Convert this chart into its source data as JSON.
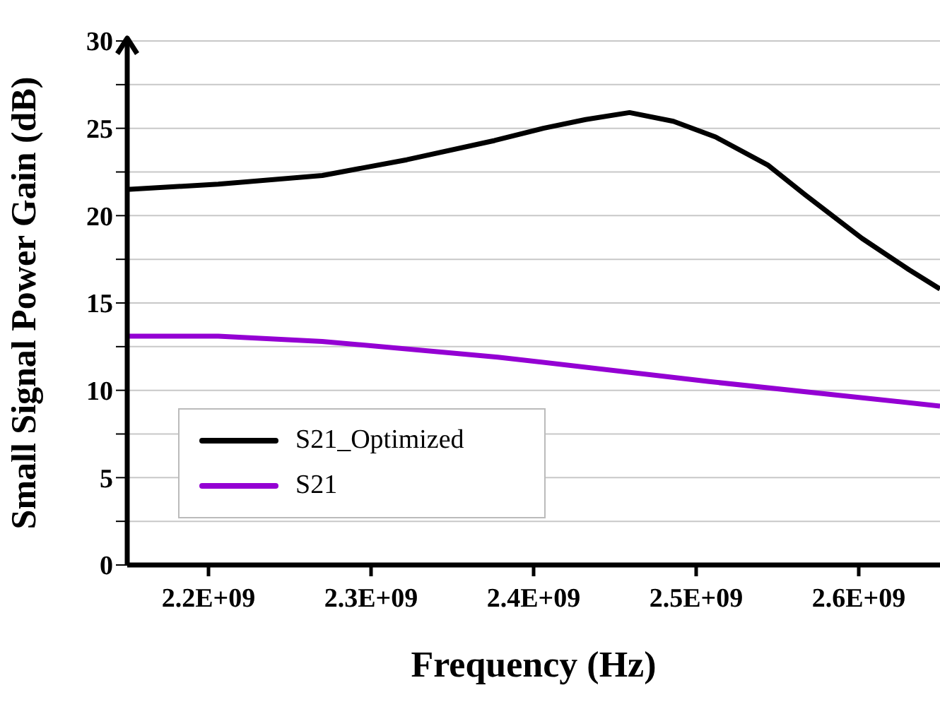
{
  "chart_data": {
    "type": "line",
    "xlabel": "Frequency (Hz)",
    "ylabel": "Small Signal Power Gain (dB)",
    "xlim": [
      2150000000,
      2650000000
    ],
    "xticks": [
      {
        "value": 2200000000,
        "label": "2.2E+09"
      },
      {
        "value": 2300000000,
        "label": "2.3E+09"
      },
      {
        "value": 2400000000,
        "label": "2.4E+09"
      },
      {
        "value": 2500000000,
        "label": "2.5E+09"
      },
      {
        "value": 2600000000,
        "label": "2.6E+09"
      }
    ],
    "ylim": [
      0,
      30
    ],
    "yticks": [
      0,
      {
        "value": 2.5,
        "label": null
      },
      5,
      {
        "value": 7.5,
        "label": null
      },
      10,
      {
        "value": 12.5,
        "label": null
      },
      15,
      {
        "value": 17.5,
        "label": null
      },
      20,
      {
        "value": 22.5,
        "label": null
      },
      25,
      {
        "value": 27.5,
        "label": null
      },
      30
    ],
    "grid": "y",
    "legend": "bottom left",
    "marker": "none",
    "line_style": "solid",
    "series": [
      {
        "name": "S21_Optimized",
        "color": "#000000",
        "x": [
          2150000000,
          2206000000,
          2270000000,
          2322000000,
          2376000000,
          2406000000,
          2432000000,
          2459000000,
          2486000000,
          2512000000,
          2544000000,
          2567000000,
          2602000000,
          2631000000,
          2650000000
        ],
        "values": [
          21.5,
          21.8,
          22.3,
          23.2,
          24.3,
          25.0,
          25.5,
          25.9,
          25.4,
          24.5,
          22.9,
          21.2,
          18.7,
          16.9,
          15.8
        ]
      },
      {
        "name": "S21",
        "color": "#9400d3",
        "x": [
          2150000000,
          2206000000,
          2270000000,
          2378000000,
          2508000000,
          2650000000
        ],
        "values": [
          13.1,
          13.1,
          12.8,
          11.9,
          10.5,
          9.1
        ]
      }
    ]
  }
}
